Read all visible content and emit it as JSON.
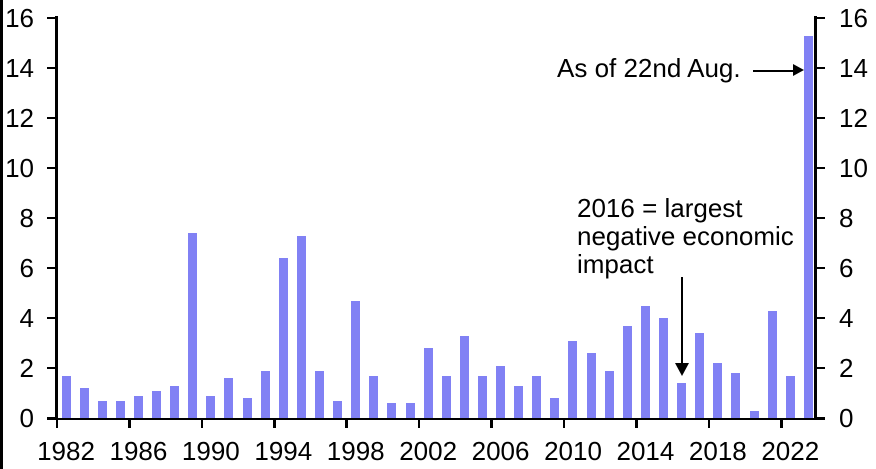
{
  "chart_data": {
    "type": "bar",
    "title": "",
    "xlabel": "",
    "ylabel": "",
    "ylim": [
      0,
      16
    ],
    "grid": false,
    "dual_y_axis": true,
    "legend": "none",
    "bar_color": "#8181F4",
    "axis_color": "#000000",
    "years": [
      1982,
      1983,
      1984,
      1985,
      1986,
      1987,
      1988,
      1989,
      1990,
      1991,
      1992,
      1993,
      1994,
      1995,
      1996,
      1997,
      1998,
      1999,
      2000,
      2001,
      2002,
      2003,
      2004,
      2005,
      2006,
      2007,
      2008,
      2009,
      2010,
      2011,
      2012,
      2013,
      2014,
      2015,
      2016,
      2017,
      2018,
      2019,
      2020,
      2021,
      2022,
      2023
    ],
    "values": [
      1.7,
      1.2,
      0.7,
      0.7,
      0.9,
      1.1,
      1.3,
      7.4,
      0.9,
      1.6,
      0.8,
      1.9,
      6.4,
      7.3,
      1.9,
      0.7,
      4.7,
      1.7,
      0.6,
      0.6,
      2.8,
      1.7,
      3.3,
      1.7,
      2.1,
      1.3,
      1.7,
      0.8,
      3.1,
      2.6,
      1.9,
      3.7,
      4.5,
      4.0,
      1.4,
      3.4,
      2.2,
      1.8,
      0.3,
      4.3,
      1.7,
      15.3
    ],
    "x_tick_labels": [
      "1982",
      "1986",
      "1990",
      "1994",
      "1998",
      "2002",
      "2006",
      "2010",
      "2014",
      "2018",
      "2022"
    ],
    "y_tick_labels": [
      "0",
      "2",
      "4",
      "6",
      "8",
      "10",
      "12",
      "14",
      "16"
    ],
    "annotations": [
      {
        "text": "As of 22nd Aug.",
        "arrow": "right",
        "target_year": 2023
      },
      {
        "text": "2016 = largest\nnegative economic\nimpact",
        "arrow": "down",
        "target_year": 2016
      }
    ]
  }
}
